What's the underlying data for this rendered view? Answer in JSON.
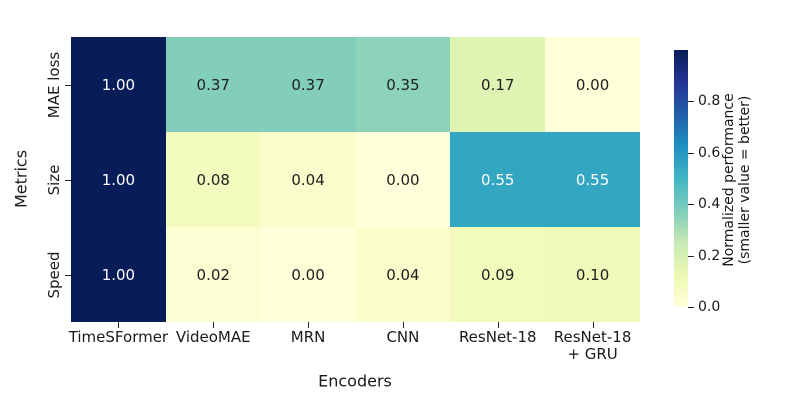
{
  "colors": {
    "background": "#ffffff",
    "text": "#1a1a1a",
    "tick": "#262626",
    "annotation_dark": "#1f1f1f",
    "annotation_light": "#ffffff"
  },
  "chart_data": {
    "type": "heatmap",
    "title": "",
    "xlabel": "Encoders",
    "ylabel": "Metrics",
    "x_categories": [
      "TimeSFormer",
      "VideoMAE",
      "MRN",
      "CNN",
      "ResNet-18",
      "ResNet-18\n+ GRU"
    ],
    "y_categories": [
      "MAE loss",
      "Size",
      "Speed"
    ],
    "values": [
      [
        1.0,
        0.37,
        0.37,
        0.35,
        0.17,
        0.0
      ],
      [
        1.0,
        0.08,
        0.04,
        0.0,
        0.55,
        0.55
      ],
      [
        1.0,
        0.02,
        0.0,
        0.04,
        0.09,
        0.1
      ]
    ],
    "value_format_decimals": 2,
    "grid": false,
    "colormap": {
      "name": "YlGnBu",
      "stops": [
        {
          "pos": 0.0,
          "color": "#ffffd9"
        },
        {
          "pos": 0.125,
          "color": "#edf8b1"
        },
        {
          "pos": 0.25,
          "color": "#c7e9b4"
        },
        {
          "pos": 0.375,
          "color": "#7fcdbb"
        },
        {
          "pos": 0.5,
          "color": "#41b6c4"
        },
        {
          "pos": 0.625,
          "color": "#1d91c0"
        },
        {
          "pos": 0.75,
          "color": "#225ea8"
        },
        {
          "pos": 0.875,
          "color": "#253494"
        },
        {
          "pos": 1.0,
          "color": "#081d58"
        }
      ]
    },
    "colorbar": {
      "position": "right",
      "range": [
        0.0,
        1.0
      ],
      "ticks": [
        0.0,
        0.2,
        0.4,
        0.6,
        0.8
      ],
      "label_line1": "Normalized performance",
      "label_line2": "(smaller value = better)"
    }
  }
}
